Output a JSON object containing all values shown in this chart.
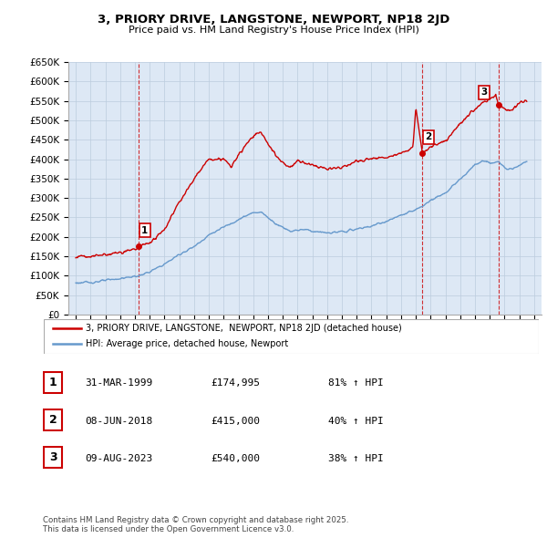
{
  "title": "3, PRIORY DRIVE, LANGSTONE, NEWPORT, NP18 2JD",
  "subtitle": "Price paid vs. HM Land Registry's House Price Index (HPI)",
  "ylim": [
    0,
    650000
  ],
  "yticks": [
    0,
    50000,
    100000,
    150000,
    200000,
    250000,
    300000,
    350000,
    400000,
    450000,
    500000,
    550000,
    600000,
    650000
  ],
  "ytick_labels": [
    "£0",
    "£50K",
    "£100K",
    "£150K",
    "£200K",
    "£250K",
    "£300K",
    "£350K",
    "£400K",
    "£450K",
    "£500K",
    "£550K",
    "£600K",
    "£650K"
  ],
  "xlim_start": 1994.5,
  "xlim_end": 2026.5,
  "sales_color": "#cc0000",
  "hpi_color": "#6699cc",
  "hpi_bg_color": "#dde8f5",
  "sale_points": [
    {
      "year": 1999.25,
      "price": 174995,
      "label": "1"
    },
    {
      "year": 2018.44,
      "price": 415000,
      "label": "2"
    },
    {
      "year": 2023.6,
      "price": 540000,
      "label": "3"
    }
  ],
  "legend_sale_label": "3, PRIORY DRIVE, LANGSTONE,  NEWPORT, NP18 2JD (detached house)",
  "legend_hpi_label": "HPI: Average price, detached house, Newport",
  "table_rows": [
    {
      "num": "1",
      "date": "31-MAR-1999",
      "price": "£174,995",
      "info": "81% ↑ HPI"
    },
    {
      "num": "2",
      "date": "08-JUN-2018",
      "price": "£415,000",
      "info": "40% ↑ HPI"
    },
    {
      "num": "3",
      "date": "09-AUG-2023",
      "price": "£540,000",
      "info": "38% ↑ HPI"
    }
  ],
  "footnote": "Contains HM Land Registry data © Crown copyright and database right 2025.\nThis data is licensed under the Open Government Licence v3.0.",
  "background_color": "#ffffff",
  "grid_color": "#bbccdd"
}
